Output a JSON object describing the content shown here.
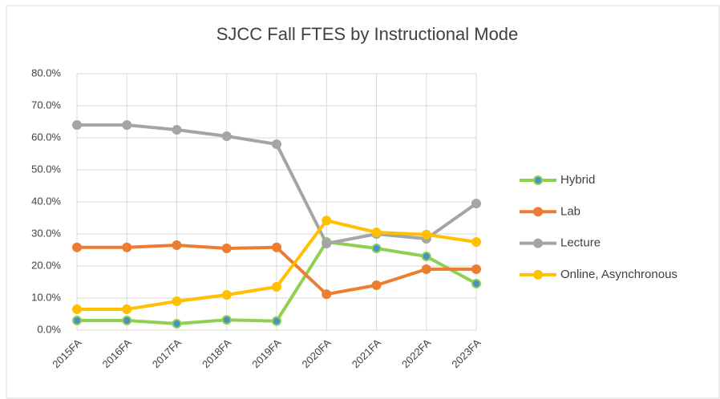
{
  "chart_data": {
    "type": "line",
    "title": "SJCC Fall FTES by Instructional Mode",
    "categories": [
      "2015FA",
      "2016FA",
      "2017FA",
      "2018FA",
      "2019FA",
      "2020FA",
      "2021FA",
      "2022FA",
      "2023FA"
    ],
    "series": [
      {
        "name": "Hybrid",
        "color": "#8fd14f",
        "marker_color": "#4a90c8",
        "values": [
          3.0,
          3.0,
          2.0,
          3.2,
          2.8,
          27.5,
          25.5,
          23.0,
          14.5
        ]
      },
      {
        "name": "Lab",
        "color": "#ed7d31",
        "values": [
          25.8,
          25.8,
          26.5,
          25.5,
          25.8,
          11.2,
          14.0,
          19.0,
          19.0
        ]
      },
      {
        "name": "Lecture",
        "color": "#a5a5a5",
        "values": [
          64.0,
          64.0,
          62.5,
          60.5,
          58.0,
          27.0,
          30.0,
          28.5,
          39.5
        ]
      },
      {
        "name": "Online, Asynchronous",
        "color": "#ffc000",
        "values": [
          6.5,
          6.5,
          9.0,
          11.0,
          13.5,
          34.2,
          30.5,
          29.8,
          27.5
        ]
      }
    ],
    "ylim": [
      0,
      80
    ],
    "yticks": [
      {
        "value": 0,
        "label": "0.0%"
      },
      {
        "value": 10,
        "label": "10.0%"
      },
      {
        "value": 20,
        "label": "20.0%"
      },
      {
        "value": 30,
        "label": "30.0%"
      },
      {
        "value": 40,
        "label": "40.0%"
      },
      {
        "value": 50,
        "label": "50.0%"
      },
      {
        "value": 60,
        "label": "60.0%"
      },
      {
        "value": 70,
        "label": "70.0%"
      },
      {
        "value": 80,
        "label": "80.0%"
      }
    ],
    "grid": true,
    "legend": "right"
  }
}
